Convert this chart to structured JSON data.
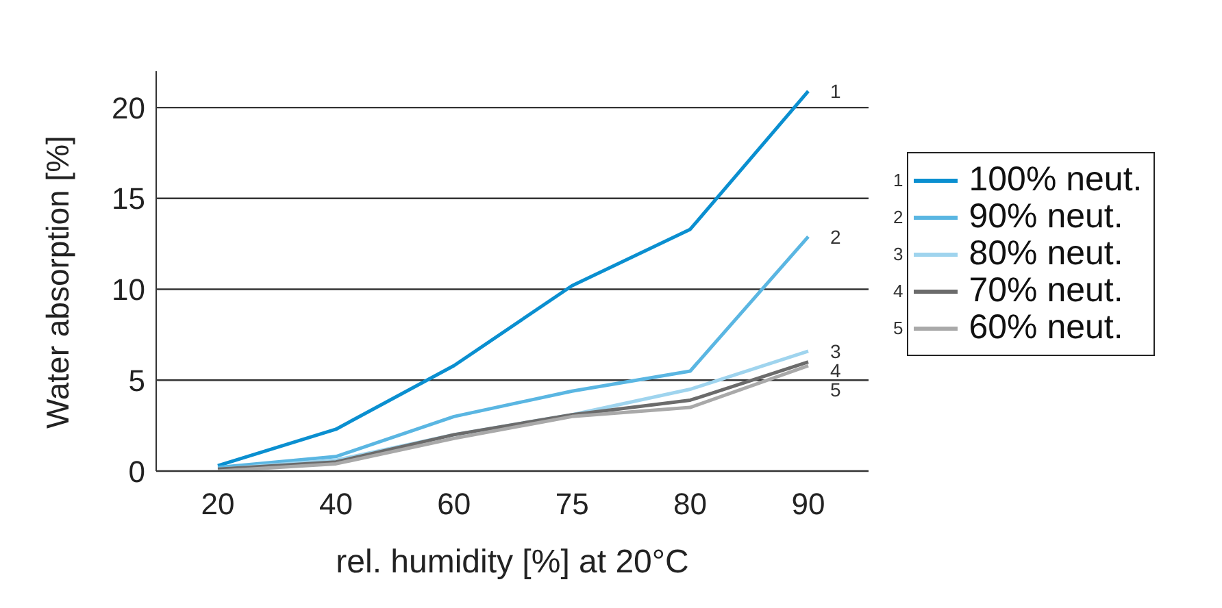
{
  "chart_data": {
    "type": "line",
    "xlabel": "rel. humidity [%] at 20°C",
    "ylabel": "Water absorption [%]",
    "categories": [
      "20",
      "40",
      "60",
      "75",
      "80",
      "90"
    ],
    "series": [
      {
        "name": "100% neut.",
        "color": "#0a8fd0",
        "values": [
          0.3,
          2.3,
          5.8,
          10.2,
          13.3,
          20.9
        ]
      },
      {
        "name": "90% neut.",
        "color": "#5ab6e2",
        "values": [
          0.2,
          0.8,
          3.0,
          4.4,
          5.5,
          12.9
        ]
      },
      {
        "name": "80% neut.",
        "color": "#9fd4ee",
        "values": [
          0.1,
          0.6,
          2.0,
          3.1,
          4.5,
          6.6
        ]
      },
      {
        "name": "70% neut.",
        "color": "#6b6b6b",
        "values": [
          0.1,
          0.5,
          2.0,
          3.1,
          3.9,
          6.0
        ]
      },
      {
        "name": "60% neut.",
        "color": "#a9a9a9",
        "values": [
          0.0,
          0.4,
          1.8,
          3.0,
          3.5,
          5.8
        ]
      }
    ],
    "annotations": [
      {
        "text": "1",
        "x": "90",
        "y": 20.9
      },
      {
        "text": "2",
        "x": "90",
        "y": 12.9
      },
      {
        "text": "3",
        "x": "90",
        "y": 6.6
      },
      {
        "text": "4",
        "x": "90",
        "y": 6.0
      },
      {
        "text": "5",
        "x": "90",
        "y": 5.8
      }
    ],
    "ylim": [
      0,
      22
    ],
    "yticks": [
      0,
      5,
      10,
      15,
      20
    ],
    "grid": "y",
    "legend": "right",
    "marker": "none",
    "line_style": "solid"
  }
}
